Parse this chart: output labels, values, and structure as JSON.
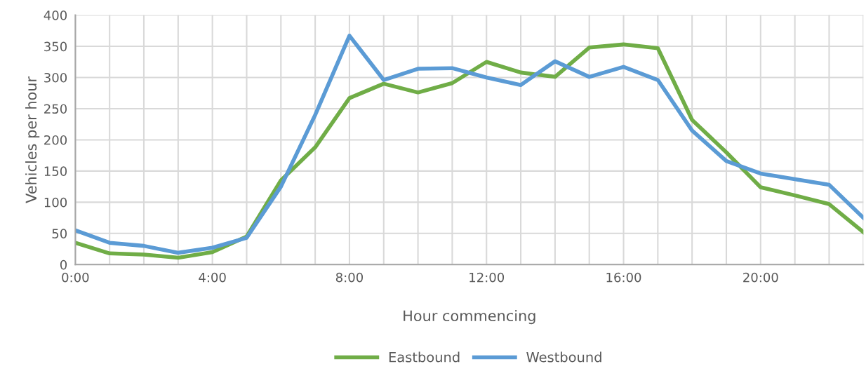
{
  "chart_data": {
    "type": "line",
    "xlabel": "Hour commencing",
    "ylabel": "Vehicles per hour",
    "x": [
      0,
      1,
      2,
      3,
      4,
      5,
      6,
      7,
      8,
      9,
      10,
      11,
      12,
      13,
      14,
      15,
      16,
      17,
      18,
      19,
      20,
      21,
      22,
      23
    ],
    "series": [
      {
        "name": "Eastbound",
        "color": "#70ad47",
        "values": [
          35,
          18,
          16,
          11,
          20,
          45,
          135,
          188,
          267,
          290,
          276,
          291,
          325,
          308,
          301,
          348,
          353,
          347,
          232,
          180,
          124,
          111,
          97,
          52
        ]
      },
      {
        "name": "Westbound",
        "color": "#5b9bd5",
        "values": [
          55,
          35,
          30,
          19,
          27,
          43,
          125,
          240,
          367,
          296,
          314,
          315,
          300,
          288,
          326,
          301,
          317,
          296,
          215,
          166,
          146,
          137,
          128,
          75
        ]
      }
    ],
    "xlim": [
      0,
      23
    ],
    "xticks": [
      {
        "value": 0,
        "label": "0:00"
      },
      {
        "value": 1,
        "label": null
      },
      {
        "value": 2,
        "label": null
      },
      {
        "value": 3,
        "label": null
      },
      {
        "value": 4,
        "label": "4:00"
      },
      {
        "value": 5,
        "label": null
      },
      {
        "value": 6,
        "label": null
      },
      {
        "value": 7,
        "label": null
      },
      {
        "value": 8,
        "label": "8:00"
      },
      {
        "value": 9,
        "label": null
      },
      {
        "value": 10,
        "label": null
      },
      {
        "value": 11,
        "label": null
      },
      {
        "value": 12,
        "label": "12:00"
      },
      {
        "value": 13,
        "label": null
      },
      {
        "value": 14,
        "label": null
      },
      {
        "value": 15,
        "label": null
      },
      {
        "value": 16,
        "label": "16:00"
      },
      {
        "value": 17,
        "label": null
      },
      {
        "value": 18,
        "label": null
      },
      {
        "value": 19,
        "label": null
      },
      {
        "value": 20,
        "label": "20:00"
      },
      {
        "value": 21,
        "label": null
      },
      {
        "value": 22,
        "label": null
      },
      {
        "value": 23,
        "label": null
      }
    ],
    "ylim": [
      0,
      400
    ],
    "yticks": [
      0,
      50,
      100,
      150,
      200,
      250,
      300,
      350,
      400
    ],
    "grid": true,
    "legend": "bottom",
    "marker": "none",
    "line_style": "solid"
  }
}
